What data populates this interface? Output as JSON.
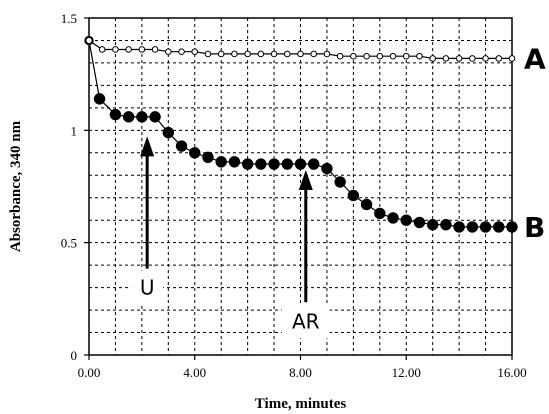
{
  "chart_data": {
    "type": "scatter",
    "xlabel": "Time, minutes",
    "ylabel": "Absorbance, 340 nm",
    "xlim": [
      0,
      16
    ],
    "ylim": [
      0,
      1.5
    ],
    "grid": true,
    "x_ticks": [
      "0.00",
      "4.00",
      "8.00",
      "12.00",
      "16.00"
    ],
    "y_ticks": [
      "0",
      "0.5",
      "1",
      "1.5"
    ],
    "series": [
      {
        "name": "A",
        "marker": "open-circle",
        "color": "#000000",
        "points": [
          [
            0,
            1.4
          ],
          [
            0.5,
            1.36
          ],
          [
            1,
            1.36
          ],
          [
            1.5,
            1.36
          ],
          [
            2,
            1.36
          ],
          [
            2.5,
            1.36
          ],
          [
            3,
            1.35
          ],
          [
            3.5,
            1.35
          ],
          [
            4,
            1.35
          ],
          [
            4.5,
            1.34
          ],
          [
            5,
            1.34
          ],
          [
            5.5,
            1.34
          ],
          [
            6,
            1.34
          ],
          [
            6.5,
            1.34
          ],
          [
            7,
            1.34
          ],
          [
            7.5,
            1.34
          ],
          [
            8,
            1.34
          ],
          [
            8.5,
            1.34
          ],
          [
            9,
            1.34
          ],
          [
            9.5,
            1.33
          ],
          [
            10,
            1.33
          ],
          [
            10.5,
            1.33
          ],
          [
            11,
            1.33
          ],
          [
            11.5,
            1.33
          ],
          [
            12,
            1.33
          ],
          [
            12.5,
            1.33
          ],
          [
            13,
            1.32
          ],
          [
            13.5,
            1.32
          ],
          [
            14,
            1.32
          ],
          [
            14.5,
            1.32
          ],
          [
            15,
            1.32
          ],
          [
            15.5,
            1.32
          ],
          [
            16,
            1.32
          ]
        ]
      },
      {
        "name": "B",
        "marker": "filled-circle",
        "color": "#000000",
        "points": [
          [
            0,
            1.4
          ],
          [
            0.4,
            1.14
          ],
          [
            1,
            1.07
          ],
          [
            1.5,
            1.06
          ],
          [
            2,
            1.06
          ],
          [
            2.5,
            1.06
          ],
          [
            3,
            0.99
          ],
          [
            3.5,
            0.93
          ],
          [
            4,
            0.9
          ],
          [
            4.5,
            0.88
          ],
          [
            5,
            0.86
          ],
          [
            5.5,
            0.86
          ],
          [
            6,
            0.85
          ],
          [
            6.5,
            0.85
          ],
          [
            7,
            0.85
          ],
          [
            7.5,
            0.85
          ],
          [
            8,
            0.85
          ],
          [
            8.5,
            0.85
          ],
          [
            9,
            0.83
          ],
          [
            9.5,
            0.77
          ],
          [
            10,
            0.71
          ],
          [
            10.5,
            0.67
          ],
          [
            11,
            0.63
          ],
          [
            11.5,
            0.61
          ],
          [
            12,
            0.6
          ],
          [
            12.5,
            0.59
          ],
          [
            13,
            0.58
          ],
          [
            13.5,
            0.58
          ],
          [
            14,
            0.57
          ],
          [
            14.5,
            0.57
          ],
          [
            15,
            0.57
          ],
          [
            15.5,
            0.57
          ],
          [
            16,
            0.57
          ]
        ]
      }
    ],
    "annotations": [
      {
        "text": "U",
        "x": 2.2,
        "y": 1.0,
        "y_label": 0.3
      },
      {
        "text": "AR",
        "x": 8.2,
        "y": 0.85,
        "y_label": 0.15
      }
    ]
  }
}
